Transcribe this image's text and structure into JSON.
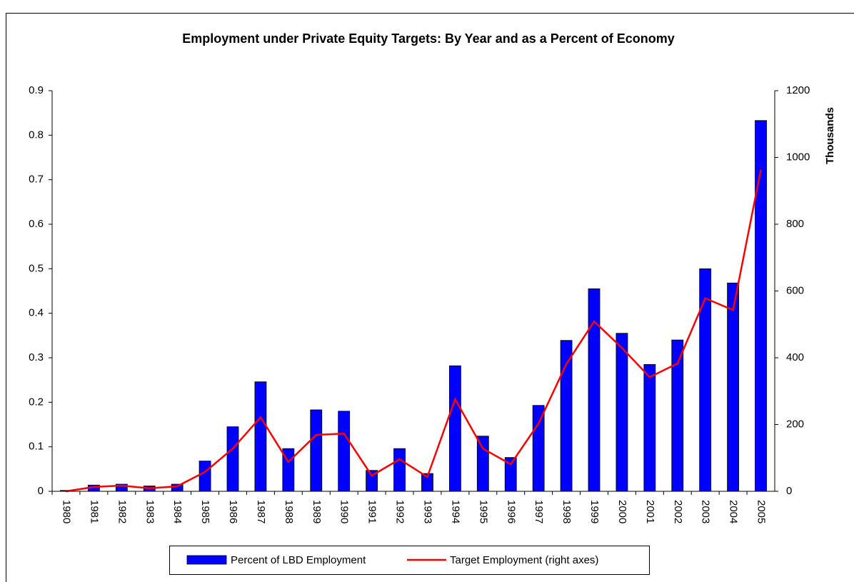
{
  "chart_data": {
    "type": "bar_line",
    "title": "Employment under Private Equity Targets: By Year and as a Percent of Economy",
    "y2_label": "Thousands",
    "categories": [
      "1980",
      "1981",
      "1982",
      "1983",
      "1984",
      "1985",
      "1986",
      "1987",
      "1988",
      "1989",
      "1990",
      "1991",
      "1992",
      "1993",
      "1994",
      "1995",
      "1996",
      "1997",
      "1998",
      "1999",
      "2000",
      "2001",
      "2002",
      "2003",
      "2004",
      "2005"
    ],
    "series": [
      {
        "name": "Percent of LBD Employment",
        "color": "#0000ff",
        "type": "bar",
        "values": [
          0.002,
          0.014,
          0.016,
          0.012,
          0.016,
          0.068,
          0.145,
          0.246,
          0.096,
          0.183,
          0.18,
          0.047,
          0.096,
          0.04,
          0.282,
          0.124,
          0.076,
          0.193,
          0.339,
          0.455,
          0.355,
          0.285,
          0.34,
          0.5,
          0.468,
          0.833
        ]
      },
      {
        "name": "Target Employment (right axes)",
        "color": "#ff0000",
        "type": "line",
        "axis": "y2",
        "values": [
          0,
          13,
          17,
          9,
          15,
          58,
          128,
          222,
          88,
          169,
          173,
          47,
          96,
          43,
          276,
          128,
          81,
          203,
          381,
          509,
          430,
          342,
          383,
          578,
          543,
          963
        ]
      }
    ],
    "ylim": [
      0,
      0.9
    ],
    "yticks": [
      {
        "value": 0,
        "label": "0"
      },
      0.1,
      0.2,
      0.3,
      0.4,
      0.5,
      0.6,
      0.7,
      0.8,
      0.9
    ],
    "y2lim": [
      0,
      1200
    ],
    "y2ticks": [
      0,
      200,
      400,
      600,
      800,
      1000,
      1200
    ]
  }
}
